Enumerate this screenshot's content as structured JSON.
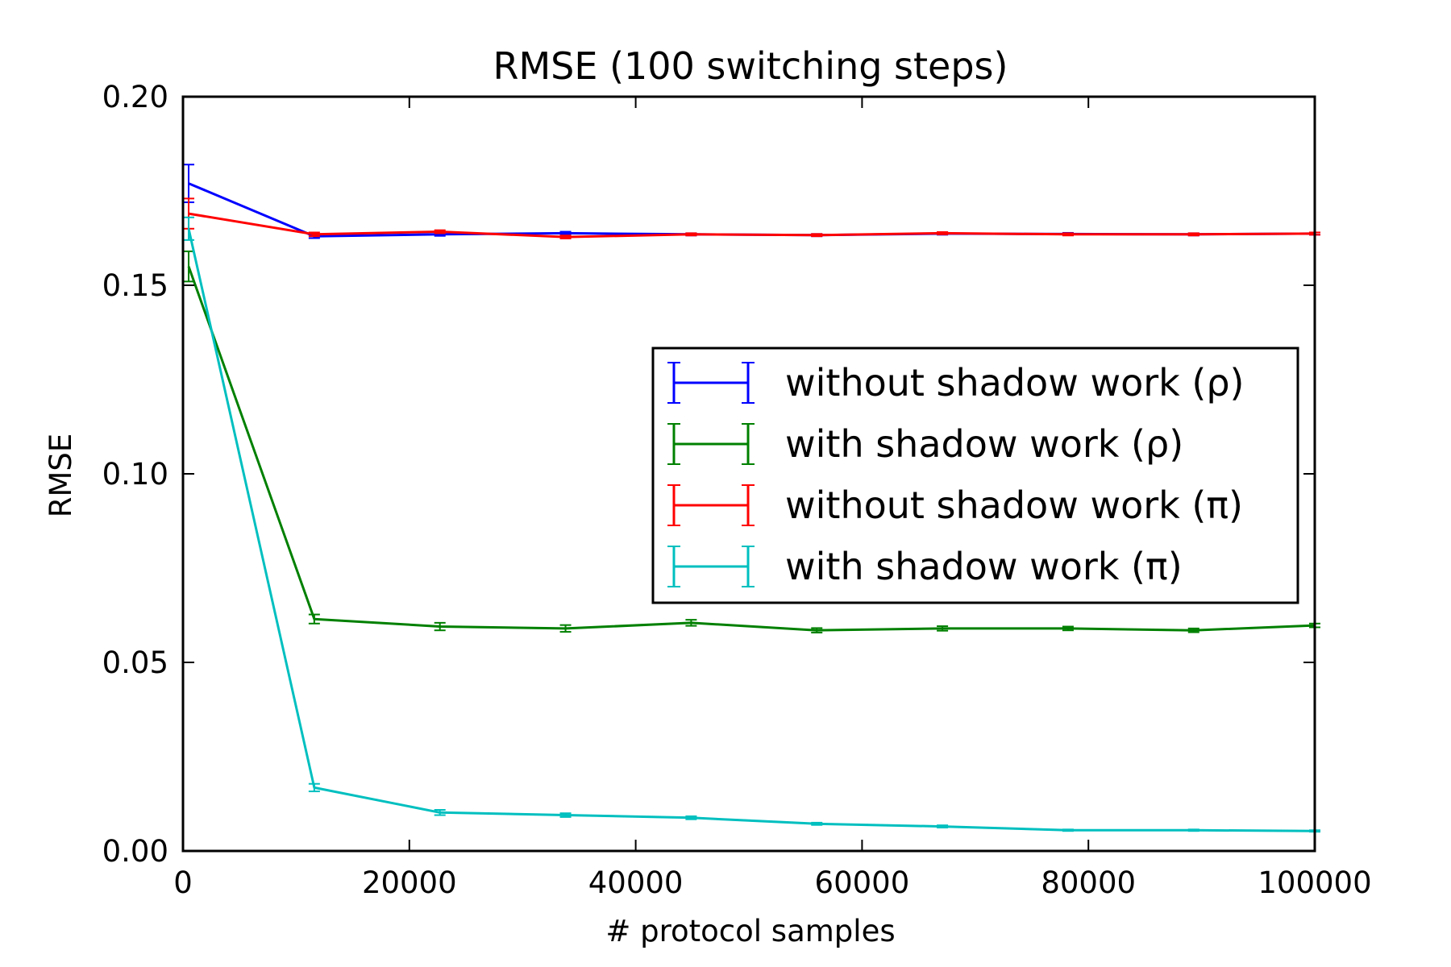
{
  "chart_data": {
    "type": "line",
    "title": "RMSE (100 switching steps)",
    "xlabel": "# protocol samples",
    "ylabel": "RMSE",
    "xlim": [
      0,
      100000
    ],
    "ylim": [
      0.0,
      0.2
    ],
    "xticks": [
      0,
      20000,
      40000,
      60000,
      80000,
      100000
    ],
    "xtick_labels": [
      "0",
      "20000",
      "40000",
      "60000",
      "80000",
      "100000"
    ],
    "yticks": [
      0.0,
      0.05,
      0.1,
      0.15,
      0.2
    ],
    "ytick_labels": [
      "0.00",
      "0.05",
      "0.10",
      "0.15",
      "0.20"
    ],
    "grid": false,
    "legend_position": "center-right",
    "x": [
      500,
      11600,
      22700,
      33800,
      44900,
      56000,
      67100,
      78200,
      89300,
      100000
    ],
    "series": [
      {
        "name": "without shadow work (ρ)",
        "color": "#0000ff",
        "values": [
          0.177,
          0.163,
          0.1635,
          0.1638,
          0.1635,
          0.1633,
          0.1637,
          0.1636,
          0.1635,
          0.1637
        ],
        "errors": [
          0.005,
          0.0005,
          0.0004,
          0.0004,
          0.0003,
          0.0003,
          0.0003,
          0.0003,
          0.0003,
          0.0003
        ]
      },
      {
        "name": "with shadow work (ρ)",
        "color": "#008000",
        "values": [
          0.155,
          0.0615,
          0.0595,
          0.059,
          0.0605,
          0.0585,
          0.059,
          0.059,
          0.0585,
          0.0598
        ],
        "errors": [
          0.004,
          0.0012,
          0.001,
          0.0009,
          0.0008,
          0.0006,
          0.0006,
          0.0005,
          0.0005,
          0.0005
        ]
      },
      {
        "name": "without shadow work (π)",
        "color": "#ff0000",
        "values": [
          0.169,
          0.1635,
          0.1642,
          0.1628,
          0.1635,
          0.1633,
          0.1638,
          0.1635,
          0.1635,
          0.1637
        ],
        "errors": [
          0.004,
          0.0005,
          0.0004,
          0.0004,
          0.0003,
          0.0003,
          0.0003,
          0.0003,
          0.0003,
          0.0003
        ]
      },
      {
        "name": "with shadow work (π)",
        "color": "#00bfbf",
        "values": [
          0.165,
          0.0168,
          0.0102,
          0.0095,
          0.0088,
          0.0072,
          0.0065,
          0.0055,
          0.0055,
          0.0053
        ],
        "errors": [
          0.003,
          0.001,
          0.0007,
          0.0005,
          0.0004,
          0.0003,
          0.0003,
          0.0002,
          0.0002,
          0.0002
        ]
      }
    ]
  }
}
